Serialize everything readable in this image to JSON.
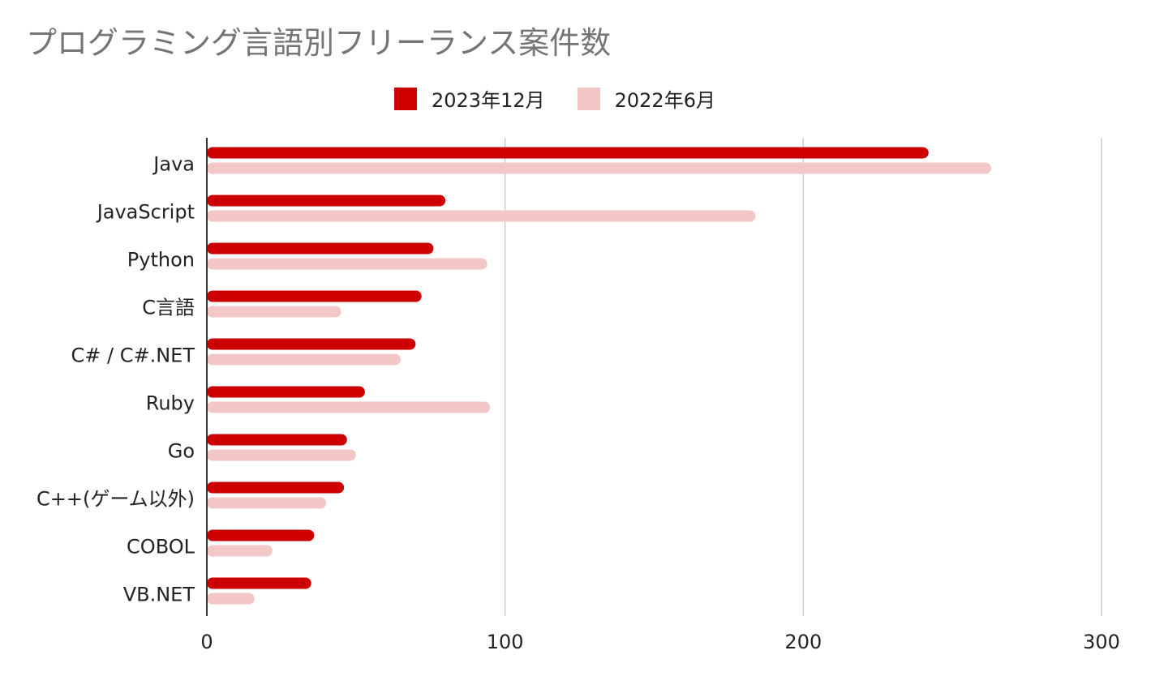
{
  "chart_data": {
    "type": "bar",
    "orientation": "horizontal",
    "title": "プログラミング言語別フリーランス案件数",
    "categories": [
      "Java",
      "JavaScript",
      "Python",
      "C言語",
      "C# / C#.NET",
      "Ruby",
      "Go",
      "C++(ゲーム以外)",
      "COBOL",
      "VB.NET"
    ],
    "series": [
      {
        "name": "2023年12月",
        "color": "#cc0000",
        "values": [
          242,
          80,
          76,
          72,
          70,
          53,
          47,
          46,
          36,
          35
        ]
      },
      {
        "name": "2022年6月",
        "color": "#f4c7c7",
        "values": [
          263,
          184,
          94,
          45,
          65,
          95,
          50,
          40,
          22,
          16
        ]
      }
    ],
    "xlim": [
      0,
      300
    ],
    "xticks": [
      0,
      100,
      200,
      300
    ],
    "grid": true,
    "legend": "top"
  }
}
